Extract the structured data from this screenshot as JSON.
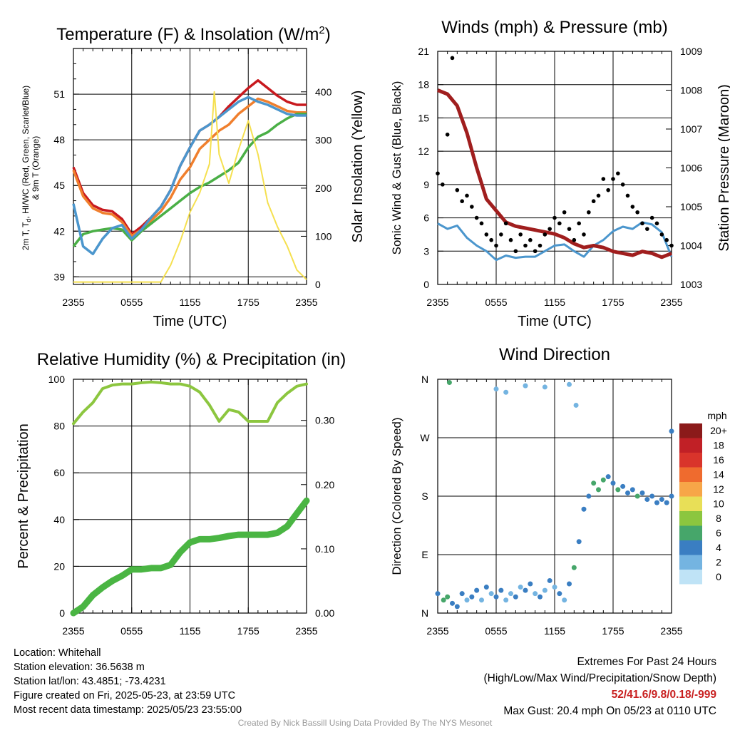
{
  "colors": {
    "red": "#c8191e",
    "orange": "#f07f2d",
    "green": "#4aaf46",
    "blue": "#4b96cd",
    "yellow": "#f5e050",
    "black": "#000000",
    "maroon": "#a01e1e",
    "lightgreen": "#8cc63f",
    "precip": "#4ab543"
  },
  "chart_data": [
    {
      "type": "line",
      "title": "Temperature (F) & Insolation (W/m²)",
      "xlabel": "Time (UTC)",
      "ylabel": "2m T, Td, HI/WC (Red, Green, Scarlet/Blue) & 9m T (Orange)",
      "y2label": "Solar Insolation (Yellow)",
      "x_ticks": [
        "2355",
        "0555",
        "1155",
        "1755",
        "2355"
      ],
      "ylim": [
        38.5,
        54
      ],
      "y_ticks": [
        39,
        42,
        45,
        48,
        51
      ],
      "y2lim": [
        0,
        490
      ],
      "y2_ticks": [
        0,
        100,
        200,
        300,
        400
      ],
      "series": [
        {
          "color": "red",
          "axis": "y",
          "x": [
            0,
            1,
            2,
            3,
            4,
            5,
            6,
            7,
            8,
            9,
            10,
            11,
            12,
            13,
            14,
            15,
            16,
            17,
            18,
            19,
            20,
            21,
            22,
            23,
            24
          ],
          "values": [
            46.2,
            44.5,
            43.7,
            43.4,
            43.3,
            42.8,
            41.8,
            42.3,
            42.9,
            43.6,
            44.7,
            46.3,
            47.5,
            48.6,
            49.0,
            49.5,
            50.2,
            50.8,
            51.4,
            51.9,
            51.4,
            50.9,
            50.5,
            50.3,
            50.3
          ]
        },
        {
          "color": "orange",
          "axis": "y",
          "x": [
            0,
            1,
            2,
            3,
            4,
            5,
            6,
            7,
            8,
            9,
            10,
            11,
            12,
            13,
            14,
            15,
            16,
            17,
            18,
            19,
            20,
            21,
            22,
            23,
            24
          ],
          "values": [
            46.0,
            44.3,
            43.5,
            43.2,
            43.1,
            42.6,
            41.7,
            42.1,
            42.7,
            43.3,
            44.2,
            45.4,
            46.2,
            47.4,
            48.0,
            48.6,
            49.0,
            49.7,
            50.2,
            50.7,
            50.5,
            50.2,
            49.9,
            49.8,
            49.8
          ]
        },
        {
          "color": "green",
          "axis": "y",
          "x": [
            0,
            1,
            2,
            3,
            4,
            5,
            6,
            7,
            8,
            9,
            10,
            11,
            12,
            13,
            14,
            15,
            16,
            17,
            18,
            19,
            20,
            21,
            22,
            23,
            24
          ],
          "values": [
            41.0,
            41.8,
            42.0,
            42.1,
            42.2,
            42.1,
            41.4,
            42.0,
            42.5,
            43.0,
            43.5,
            44.0,
            44.5,
            44.9,
            45.2,
            45.6,
            46.0,
            46.5,
            47.5,
            48.2,
            48.5,
            49.0,
            49.4,
            49.7,
            49.7
          ]
        },
        {
          "color": "blue",
          "axis": "y",
          "x": [
            0,
            1,
            2,
            3,
            4,
            5,
            6,
            7,
            8,
            9,
            10,
            11,
            12,
            13,
            14,
            15,
            16,
            17,
            18,
            19,
            20,
            21,
            22,
            23,
            24
          ],
          "values": [
            43.8,
            41.0,
            40.5,
            41.5,
            42.2,
            42.4,
            41.5,
            42.1,
            42.9,
            43.6,
            44.7,
            46.3,
            47.5,
            48.6,
            49.0,
            49.5,
            50.0,
            50.5,
            50.8,
            50.5,
            50.3,
            50.0,
            49.7,
            49.6,
            49.6
          ]
        },
        {
          "color": "yellow",
          "axis": "y2",
          "x": [
            0,
            9,
            10,
            11,
            12,
            13,
            14,
            14.5,
            15,
            16,
            17,
            18,
            19,
            20,
            21,
            22,
            23,
            24
          ],
          "values": [
            5,
            5,
            40,
            90,
            150,
            190,
            250,
            400,
            270,
            210,
            280,
            340,
            270,
            170,
            120,
            80,
            30,
            10
          ]
        }
      ]
    },
    {
      "type": "line",
      "title": "Winds (mph) & Pressure (mb)",
      "xlabel": "Time (UTC)",
      "ylabel": "Sonic Wind & Gust (Blue, Black)",
      "y2label": "Station Pressure (Maroon)",
      "x_ticks": [
        "2355",
        "0555",
        "1155",
        "1755",
        "2355"
      ],
      "ylim": [
        0,
        21
      ],
      "y_ticks": [
        0,
        3,
        6,
        9,
        12,
        15,
        18,
        21
      ],
      "y2lim": [
        1003,
        1009
      ],
      "y2_ticks": [
        1003,
        1004,
        1005,
        1006,
        1007,
        1008,
        1009
      ],
      "series": [
        {
          "color": "blue",
          "axis": "y",
          "x": [
            0,
            1,
            2,
            3,
            4,
            5,
            6,
            7,
            8,
            9,
            10,
            11,
            12,
            13,
            14,
            15,
            16,
            17,
            18,
            19,
            20,
            21,
            22,
            23,
            24
          ],
          "values": [
            5.5,
            5.0,
            5.3,
            4.2,
            3.5,
            3.0,
            2.2,
            2.6,
            2.4,
            2.5,
            2.5,
            3.0,
            3.5,
            3.6,
            3.0,
            2.5,
            3.5,
            4.0,
            4.8,
            5.2,
            5.0,
            5.6,
            5.4,
            4.7,
            2.5
          ]
        },
        {
          "color": "maroon",
          "axis": "y2",
          "x": [
            0,
            1,
            2,
            3,
            4,
            5,
            6,
            7,
            8,
            9,
            10,
            11,
            12,
            13,
            14,
            15,
            16,
            17,
            18,
            19,
            20,
            21,
            22,
            23,
            24
          ],
          "values": [
            1008.0,
            1007.9,
            1007.6,
            1006.9,
            1006.0,
            1005.2,
            1004.9,
            1004.6,
            1004.5,
            1004.45,
            1004.4,
            1004.35,
            1004.3,
            1004.2,
            1004.05,
            1003.95,
            1004.0,
            1003.95,
            1003.85,
            1003.8,
            1003.75,
            1003.85,
            1003.8,
            1003.7,
            1003.8
          ]
        },
        {
          "color": "black",
          "kind": "scatter",
          "axis": "y",
          "x": [
            0,
            0.5,
            1,
            1.5,
            2,
            2.5,
            3,
            3.5,
            4,
            4.5,
            5,
            5.5,
            6,
            6.5,
            7,
            7.5,
            8,
            8.5,
            9,
            9.5,
            10,
            10.5,
            11,
            11.5,
            12,
            12.5,
            13,
            13.5,
            14,
            14.5,
            15,
            15.5,
            16,
            16.5,
            17,
            17.5,
            18,
            18.5,
            19,
            19.5,
            20,
            20.5,
            21,
            21.5,
            22,
            22.5,
            23,
            23.5,
            24
          ],
          "values": [
            10,
            9,
            13.5,
            20.4,
            8.5,
            7.5,
            8,
            7,
            6,
            5.5,
            4.5,
            4,
            3.5,
            4.5,
            5.5,
            4,
            3,
            4.5,
            3.5,
            4,
            3,
            3.5,
            4.5,
            5,
            6,
            5.5,
            6.5,
            5,
            4,
            5.5,
            4.5,
            6.5,
            7.5,
            8,
            9.5,
            8.5,
            9.5,
            10,
            9,
            8,
            7,
            6.5,
            5.5,
            5,
            6,
            5.5,
            4.5,
            4,
            3.5
          ]
        }
      ]
    },
    {
      "type": "line",
      "title": "Relative Humidity (%) & Precipitation (in)",
      "ylabel": "Percent & Precipitation",
      "x_ticks": [
        "2355",
        "0555",
        "1155",
        "1755",
        "2355"
      ],
      "ylim": [
        0,
        100
      ],
      "y_ticks": [
        0,
        20,
        40,
        60,
        80,
        100
      ],
      "y2lim": [
        0,
        0.364
      ],
      "y2_ticks": [
        "0.00",
        "0.10",
        "0.20",
        "0.30"
      ],
      "series": [
        {
          "color": "lightgreen",
          "axis": "y",
          "x": [
            0,
            1,
            2,
            3,
            4,
            5,
            6,
            7,
            8,
            9,
            10,
            11,
            12,
            13,
            14,
            15,
            16,
            17,
            18,
            19,
            20,
            21,
            22,
            23,
            24
          ],
          "values": [
            81,
            86,
            90,
            96,
            97.5,
            98,
            98,
            98.5,
            98.8,
            98.5,
            98,
            98,
            97,
            94.5,
            89,
            82,
            87,
            86,
            82,
            82,
            82,
            90,
            94,
            97,
            98
          ]
        },
        {
          "color": "precip",
          "axis": "y2",
          "x": [
            0,
            1,
            2,
            3,
            4,
            5,
            6,
            7,
            8,
            9,
            10,
            11,
            12,
            13,
            14,
            15,
            16,
            17,
            18,
            19,
            20,
            21,
            22,
            23,
            24
          ],
          "values": [
            0,
            0.01,
            0.028,
            0.04,
            0.05,
            0.058,
            0.068,
            0.068,
            0.07,
            0.07,
            0.075,
            0.095,
            0.11,
            0.115,
            0.115,
            0.117,
            0.12,
            0.122,
            0.122,
            0.122,
            0.122,
            0.125,
            0.135,
            0.155,
            0.175
          ]
        }
      ]
    },
    {
      "type": "scatter",
      "title": "Wind Direction",
      "ylabel": "Direction (Colored By Speed)",
      "x_ticks": [
        "2355",
        "0555",
        "1155",
        "1755",
        "2355"
      ],
      "y_ticks": [
        "N",
        "E",
        "S",
        "W",
        "N"
      ],
      "ylim": [
        0,
        360
      ],
      "legend": {
        "title": "mph",
        "labels": [
          "20+",
          "18",
          "16",
          "14",
          "12",
          "10",
          "8",
          "6",
          "4",
          "2",
          "0"
        ],
        "colors": [
          "#8b1a1a",
          "#c12026",
          "#d9342b",
          "#ef6b2e",
          "#f7a648",
          "#e8df57",
          "#8cc63f",
          "#46a66a",
          "#3a7ec2",
          "#74b4e1",
          "#bfe3f6"
        ]
      },
      "series": [
        {
          "x": [
            0,
            0.6,
            1,
            1.5,
            2,
            2.5,
            3,
            3.5,
            4,
            4.5,
            5,
            5.5,
            6,
            6.5,
            7,
            7.5,
            8,
            8.5,
            9,
            9.5,
            10,
            10.5,
            11,
            11.5,
            12,
            12.5,
            13,
            13.5,
            14,
            14.5,
            15,
            15.5,
            16,
            16.5,
            17,
            17.5,
            18,
            18.5,
            19,
            19.5,
            20,
            20.5,
            21,
            21.5,
            22,
            22.5,
            23,
            23.5,
            24
          ],
          "values": [
            30,
            20,
            25,
            15,
            10,
            30,
            20,
            25,
            35,
            20,
            40,
            30,
            25,
            35,
            20,
            30,
            25,
            40,
            35,
            45,
            30,
            25,
            35,
            50,
            40,
            30,
            20,
            45,
            70,
            110,
            160,
            180,
            200,
            190,
            205,
            210,
            200,
            190,
            195,
            185,
            190,
            180,
            185,
            175,
            180,
            170,
            175,
            170,
            180
          ],
          "speeds": [
            4,
            5,
            6,
            4,
            3,
            4,
            2,
            3,
            3,
            2,
            4,
            2,
            3,
            3,
            2,
            2,
            3,
            2,
            3,
            4,
            2,
            3,
            2,
            3,
            2,
            3,
            2,
            4,
            5,
            3,
            4,
            4,
            5,
            6,
            5,
            4,
            4,
            5,
            4,
            4,
            4,
            5,
            4,
            3,
            3,
            4,
            3,
            4,
            3
          ]
        },
        {
          "x": [
            1.2,
            6,
            7,
            9,
            11,
            13.5,
            14.2,
            24
          ],
          "values": [
            355,
            345,
            340,
            350,
            348,
            352,
            320,
            280
          ],
          "speeds": [
            6,
            1,
            1,
            1,
            1,
            1,
            1,
            3
          ]
        }
      ]
    }
  ],
  "info_left": {
    "location": "Location: Whitehall",
    "elevation": "Station elevation: 36.5638 m",
    "latlon": "Station lat/lon: 43.4851; -73.4231",
    "created": "Figure created on Fri, 2025-05-23, at 23:59 UTC",
    "recent": "Most recent data timestamp: 2025/05/23 23:55:00"
  },
  "info_right": {
    "title": "Extremes For Past 24 Hours",
    "subtitle": "(High/Low/Max Wind/Precipitation/Snow Depth)",
    "values": "52/41.6/9.8/0.18/-999",
    "gust": "Max Gust: 20.4 mph On 05/23 at 0110 UTC"
  },
  "credit": "Created By Nick Bassill Using Data Provided By The NYS Mesonet"
}
